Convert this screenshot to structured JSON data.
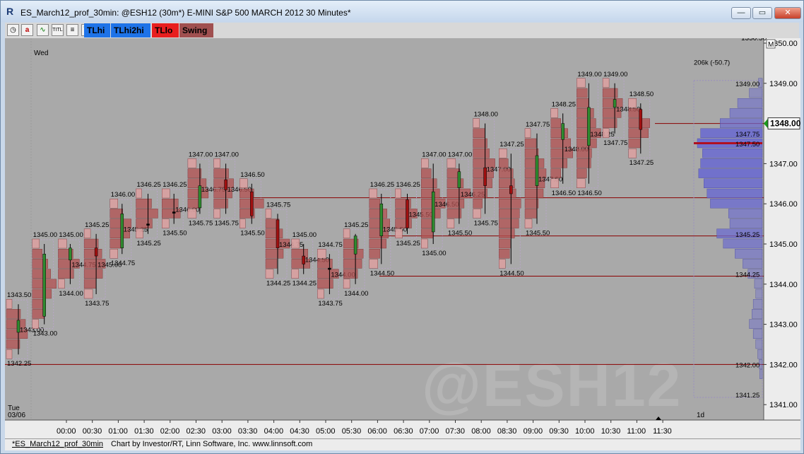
{
  "window": {
    "title": "ES_March12_prof_30min: @ESH12 (30m*) E-MINI S&P 500 MARCH 2012 30 Minutes*",
    "app_icon": "R",
    "controls": [
      "minimize",
      "maximize",
      "close"
    ]
  },
  "toolbar": {
    "icons": [
      "clock-icon",
      "annotation-a-icon",
      "chart-icon",
      "title-icon",
      "list-icon",
      "trash-icon"
    ],
    "buttons": [
      {
        "label": "TLhi",
        "color": "#1e73e8"
      },
      {
        "label": "TLhi2hi",
        "color": "#1e73e8"
      },
      {
        "label": "TLlo",
        "color": "#e81e1e"
      },
      {
        "label": "Swing",
        "color": "#a05050"
      }
    ]
  },
  "chart_data": {
    "type": "market-profile-candlestick",
    "symbol_watermark": "@ESH12",
    "session_labels": {
      "wed": "Wed",
      "tue": "Tue",
      "tue_date": "03/06"
    },
    "ylim": [
      1341.0,
      1350.5
    ],
    "y_ticks": [
      "1341.00",
      "1342.00",
      "1343.00",
      "1344.00",
      "1345.00",
      "1346.00",
      "1347.00",
      "1348.00",
      "1349.00",
      "1350.00"
    ],
    "last_price": "1348.00",
    "top_cut_label": "1350.50",
    "m_marker": "M",
    "x_labels": [
      "00:00",
      "00:30",
      "01:00",
      "01:30",
      "02:00",
      "02:30",
      "03:00",
      "03:30",
      "04:00",
      "04:30",
      "05:00",
      "05:30",
      "06:00",
      "06:30",
      "07:00",
      "07:30",
      "08:00",
      "08:30",
      "09:00",
      "09:30",
      "10:00",
      "10:30",
      "11:00",
      "11:30"
    ],
    "bars": [
      {
        "hi": "1343.50",
        "lo": "1342.25",
        "o": 1342.8,
        "c": 1343.1,
        "dir": "up",
        "mid": "1343.00"
      },
      {
        "hi": "1345.00",
        "lo": "1343.00",
        "o": 1343.2,
        "c": 1344.75,
        "dir": "up",
        "mid": ""
      },
      {
        "hi": "1345.00",
        "lo": "1344.00",
        "o": 1344.6,
        "c": 1344.9,
        "dir": "up",
        "mid": "1344.75"
      },
      {
        "hi": "1345.25",
        "lo": "1343.75",
        "o": 1344.9,
        "c": 1344.7,
        "dir": "down",
        "mid": "1345.00"
      },
      {
        "hi": "1346.00",
        "lo": "1344.75",
        "o": 1344.9,
        "c": 1345.75,
        "dir": "up",
        "mid": "1345.25"
      },
      {
        "hi": "1346.25",
        "lo": "1345.25",
        "o": 1345.5,
        "c": 1345.5,
        "dir": "flat",
        "mid": ""
      },
      {
        "hi": "1346.25",
        "lo": "1345.50",
        "o": 1345.8,
        "c": 1345.8,
        "dir": "flat",
        "mid": "1346.00"
      },
      {
        "hi": "1347.00",
        "lo": "1345.75",
        "o": 1345.9,
        "c": 1346.45,
        "dir": "up",
        "mid": "1346.75"
      },
      {
        "hi": "1347.00",
        "lo": "1345.75",
        "o": 1346.6,
        "c": 1346.35,
        "dir": "down",
        "mid": "1346.50"
      },
      {
        "hi": "1346.50",
        "lo": "1345.50",
        "o": 1346.3,
        "c": 1345.7,
        "dir": "down",
        "mid": ""
      },
      {
        "hi": "1345.75",
        "lo": "1344.25",
        "o": 1345.6,
        "c": 1344.9,
        "dir": "down",
        "mid": "1344.75"
      },
      {
        "hi": "1345.00",
        "lo": "1344.25",
        "o": 1344.7,
        "c": 1344.5,
        "dir": "down",
        "mid": "1344.50"
      },
      {
        "hi": "1344.75",
        "lo": "1343.75",
        "o": 1344.4,
        "c": 1344.4,
        "dir": "flat",
        "mid": "1344.00"
      },
      {
        "hi": "1345.25",
        "lo": "1344.00",
        "o": 1344.75,
        "c": 1345.2,
        "dir": "up",
        "mid": ""
      },
      {
        "hi": "1346.25",
        "lo": "1344.50",
        "o": 1345.2,
        "c": 1346.0,
        "dir": "up",
        "mid": "1345.50"
      },
      {
        "hi": "1346.25",
        "lo": "1345.25",
        "o": 1346.1,
        "c": 1345.4,
        "dir": "down",
        "mid": "1345.50"
      },
      {
        "hi": "1347.00",
        "lo": "1345.00",
        "o": 1345.3,
        "c": 1346.3,
        "dir": "up",
        "mid": "1346.50"
      },
      {
        "hi": "1347.00",
        "lo": "1345.50",
        "o": 1346.4,
        "c": 1346.8,
        "dir": "up",
        "mid": "1346.25"
      },
      {
        "hi": "1348.00",
        "lo": "1345.75",
        "o": 1346.9,
        "c": 1346.45,
        "dir": "down",
        "mid": "1347.00"
      },
      {
        "hi": "1347.25",
        "lo": "1344.50",
        "o": 1346.45,
        "c": 1346.25,
        "dir": "down",
        "mid": ""
      },
      {
        "hi": "1347.75",
        "lo": "1345.50",
        "o": 1346.45,
        "c": 1347.2,
        "dir": "up",
        "mid": "1347.50"
      },
      {
        "hi": "1348.25",
        "lo": "1346.50",
        "o": 1347.6,
        "c": 1348.0,
        "dir": "up",
        "mid": "1348.00"
      },
      {
        "hi": "1349.00",
        "lo": "1346.50",
        "o": 1347.45,
        "c": 1348.4,
        "dir": "up",
        "mid": "1348.25"
      },
      {
        "hi": "1349.00",
        "lo": "1347.75",
        "o": 1348.4,
        "c": 1348.6,
        "dir": "up",
        "mid": "1348.50"
      },
      {
        "hi": "1348.50",
        "lo": "1347.25",
        "o": 1348.35,
        "c": 1347.85,
        "dir": "down",
        "mid": ""
      }
    ],
    "hlines": [
      1348.0,
      1346.15,
      1345.2,
      1344.2,
      1342.0
    ],
    "volume_profile": {
      "label": "206k (-50.7)",
      "labels": [
        {
          "text": "1349.00",
          "price": 1349.0
        },
        {
          "text": "1347.75",
          "price": 1347.75
        },
        {
          "text": "1347.50",
          "price": 1347.5
        },
        {
          "text": "1345.25",
          "price": 1345.25
        },
        {
          "text": "1344.25",
          "price": 1344.25
        },
        {
          "text": "1342.00",
          "price": 1342.0
        },
        {
          "text": "1341.25",
          "price": 1341.25
        }
      ],
      "period": "1d",
      "levels": [
        {
          "p": 1349.0,
          "v": 0.06
        },
        {
          "p": 1348.75,
          "v": 0.2
        },
        {
          "p": 1348.5,
          "v": 0.38
        },
        {
          "p": 1348.25,
          "v": 0.5
        },
        {
          "p": 1348.0,
          "v": 0.65
        },
        {
          "p": 1347.75,
          "v": 0.95
        },
        {
          "p": 1347.5,
          "v": 1.0
        },
        {
          "p": 1347.25,
          "v": 0.92
        },
        {
          "p": 1347.0,
          "v": 0.95
        },
        {
          "p": 1346.75,
          "v": 0.98
        },
        {
          "p": 1346.5,
          "v": 0.9
        },
        {
          "p": 1346.25,
          "v": 0.85
        },
        {
          "p": 1346.0,
          "v": 0.8
        },
        {
          "p": 1345.75,
          "v": 0.52
        },
        {
          "p": 1345.5,
          "v": 0.5
        },
        {
          "p": 1345.25,
          "v": 0.7
        },
        {
          "p": 1345.0,
          "v": 0.6
        },
        {
          "p": 1344.75,
          "v": 0.42
        },
        {
          "p": 1344.5,
          "v": 0.3
        },
        {
          "p": 1344.25,
          "v": 0.22
        },
        {
          "p": 1344.0,
          "v": 0.12
        },
        {
          "p": 1343.75,
          "v": 0.1
        },
        {
          "p": 1343.5,
          "v": 0.14
        },
        {
          "p": 1343.25,
          "v": 0.16
        },
        {
          "p": 1343.0,
          "v": 0.2
        },
        {
          "p": 1342.75,
          "v": 0.14
        },
        {
          "p": 1342.5,
          "v": 0.1
        },
        {
          "p": 1342.25,
          "v": 0.07
        },
        {
          "p": 1342.0,
          "v": 0.05
        },
        {
          "p": 1341.75,
          "v": 0.04
        }
      ]
    },
    "colors": {
      "up": "#2f8a2f",
      "down": "#a01010",
      "profile": "#b35050",
      "vp": "#6a6ad0",
      "bg": "#a9a9a9",
      "line": "#8b0000"
    }
  },
  "status": {
    "chart_name": "*ES_March12_prof_30min",
    "credit": "Chart by Investor/RT, Linn Software, Inc. www.linnsoft.com"
  }
}
